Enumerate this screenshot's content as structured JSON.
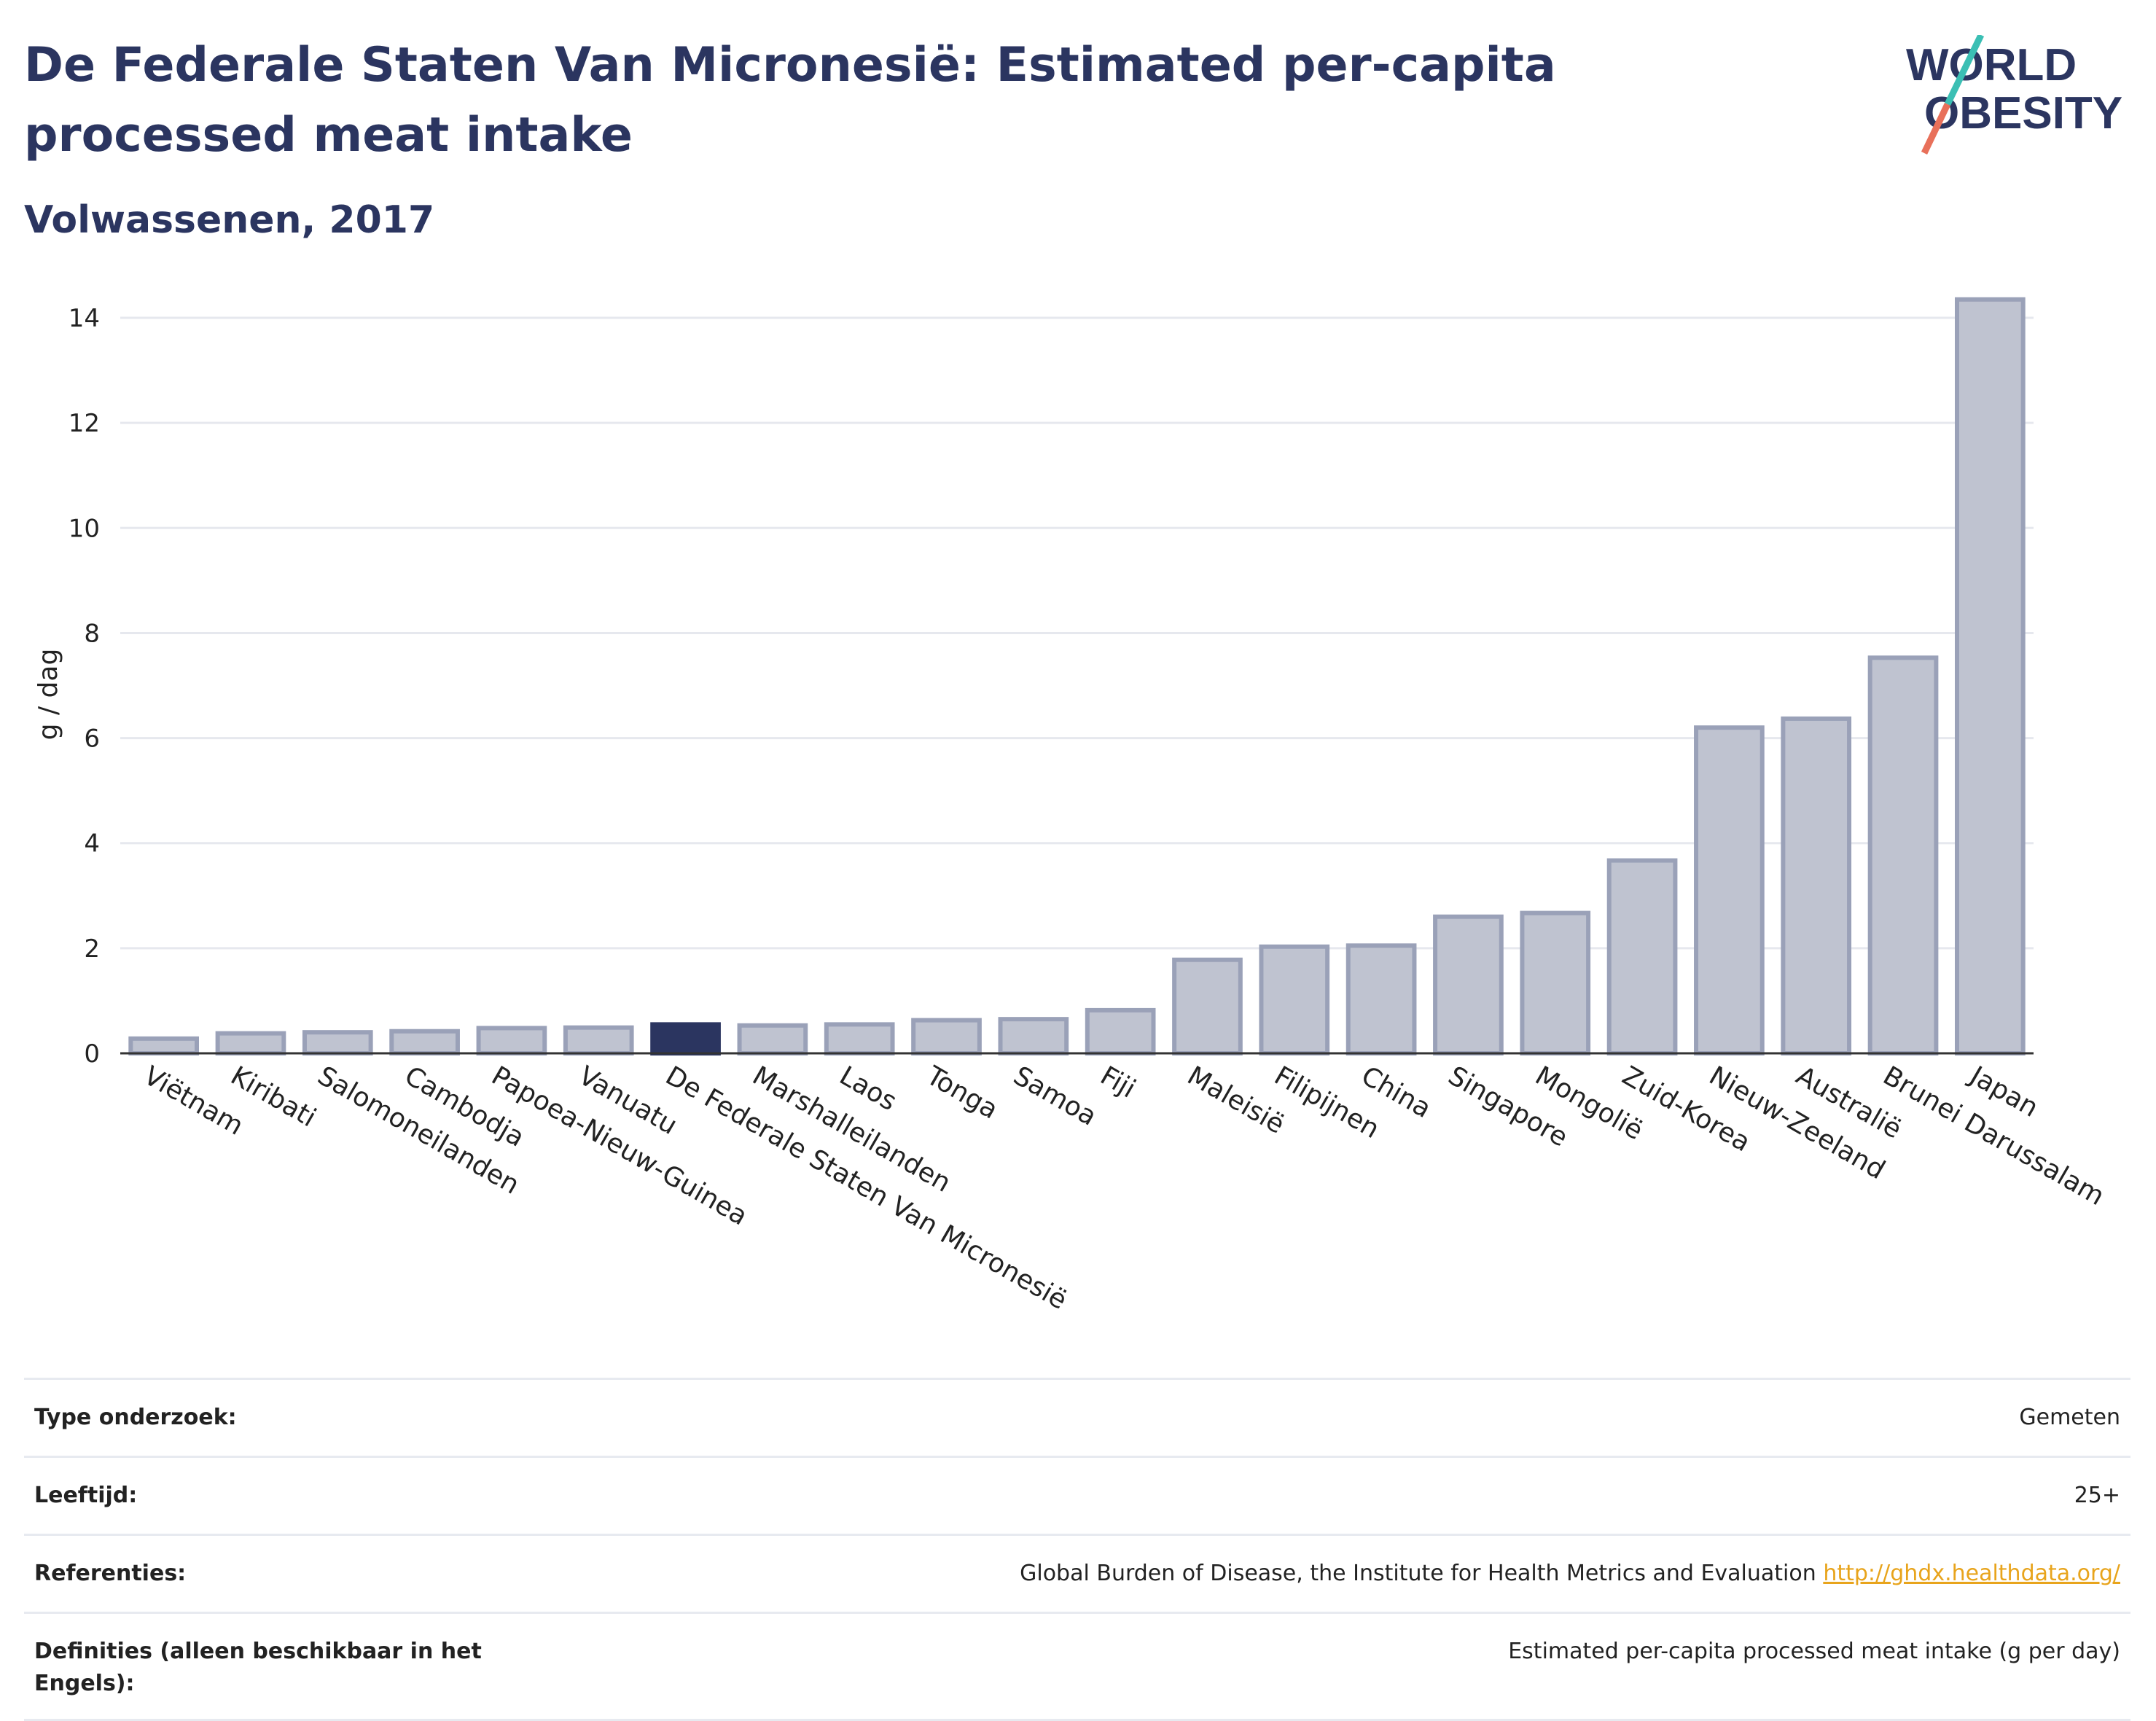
{
  "header": {
    "title": "De Federale Staten Van Micronesië: Estimated per-capita processed meat intake",
    "subtitle": "Volwassenen, 2017",
    "logo_text_line1": "WORLD",
    "logo_text_line2": "OBESITY"
  },
  "chart_data": {
    "type": "bar",
    "categories": [
      "Viëtnam",
      "Kiribati",
      "Salomoneilanden",
      "Cambodja",
      "Papoea-Nieuw-Guinea",
      "Vanuatu",
      "De Federale Staten Van Micronesië",
      "Marshalleilanden",
      "Laos",
      "Tonga",
      "Samoa",
      "Fiji",
      "Maleisië",
      "Filipijnen",
      "China",
      "Singapore",
      "Mongolië",
      "Zuid-Korea",
      "Nieuw-Zeeland",
      "Australië",
      "Brunei Darussalam",
      "Japan"
    ],
    "values": [
      0.28,
      0.38,
      0.4,
      0.42,
      0.48,
      0.49,
      0.55,
      0.53,
      0.55,
      0.63,
      0.65,
      0.82,
      1.78,
      2.03,
      2.05,
      2.6,
      2.67,
      3.67,
      6.2,
      6.37,
      7.53,
      14.35
    ],
    "highlight": "De Federale Staten Van Micronesië",
    "ylabel": "g / dag",
    "ylim": [
      0,
      14.5
    ],
    "yticks": [
      0,
      2,
      4,
      6,
      8,
      10,
      12,
      14
    ],
    "grid": true,
    "colors": {
      "bar": "#bfc3d0",
      "bar_border": "#9aa1b8",
      "highlight": "#2b3560",
      "grid": "#e6e8ee"
    }
  },
  "info_table": [
    {
      "label": "Type onderzoek:",
      "value": "Gemeten"
    },
    {
      "label": "Leeftijd:",
      "value": "25+"
    },
    {
      "label": "Referenties:",
      "value": "Global Burden of Disease, the Institute for Health Metrics and Evaluation",
      "link": "http://ghdx.healthdata.org/"
    },
    {
      "label": "Definities (alleen beschikbaar in het Engels):",
      "value": "Estimated per-capita processed meat intake (g per day)"
    }
  ],
  "colors": {
    "title": "#2b3560",
    "link": "#e8a41c",
    "logo_slash_top": "#3bbfb4",
    "logo_slash_bottom": "#e8705a"
  }
}
